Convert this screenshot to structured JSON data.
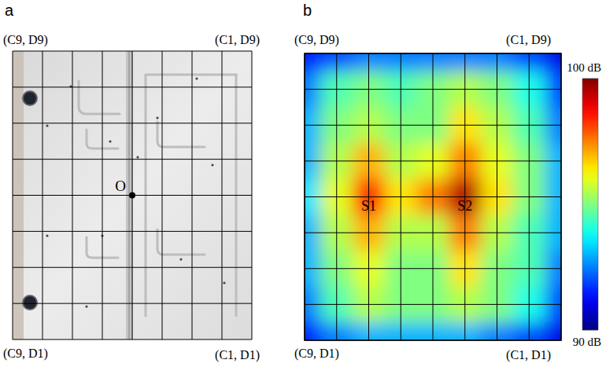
{
  "panel_a": {
    "panel_label": "a",
    "corner_labels": {
      "top_left": "(C9, D9)",
      "top_right": "(C1, D9)",
      "bottom_left": "(C9, D1)",
      "bottom_right": "(C1, D1)"
    },
    "origin": {
      "label": "O",
      "row": 4,
      "col": 4
    }
  },
  "chart_data": {
    "type": "heatmap",
    "panel_label": "b",
    "corner_labels": {
      "top_left": "(C9, D9)",
      "top_right": "(C1, D9)",
      "bottom_left": "(C9, D1)",
      "bottom_right": "(C1, D1)"
    },
    "cells": [
      [
        91.5,
        92,
        92.5,
        92.5,
        92.5,
        92.5,
        92.5,
        92,
        91
      ],
      [
        92.5,
        94.5,
        95,
        94.5,
        95,
        95.5,
        95,
        94,
        92
      ],
      [
        93,
        95,
        95.5,
        95,
        95,
        96.5,
        95.5,
        94.5,
        92.5
      ],
      [
        93,
        95.5,
        97,
        95.5,
        96,
        97.5,
        96,
        95,
        93
      ],
      [
        93.5,
        96,
        98.5,
        96.5,
        97.5,
        99.5,
        96.5,
        95,
        93
      ],
      [
        93,
        95.5,
        97,
        95.5,
        95.5,
        97.5,
        95.5,
        94.5,
        93
      ],
      [
        93,
        95,
        96,
        95,
        95,
        96.5,
        95,
        94.5,
        92.5
      ],
      [
        92.5,
        94.5,
        95.5,
        95,
        95,
        95.5,
        95,
        94,
        92
      ],
      [
        91.5,
        92.5,
        93,
        93,
        93,
        93,
        92.5,
        92,
        91
      ]
    ],
    "annotations": [
      {
        "text": "S1",
        "row": 4,
        "col": 2
      },
      {
        "text": "S2",
        "row": 4,
        "col": 5
      }
    ],
    "colorbar": {
      "range": [
        90,
        100
      ],
      "ticks": [
        {
          "value": 90,
          "label": "90 dB"
        },
        {
          "value": 100,
          "label": "100 dB"
        }
      ]
    },
    "grid": true,
    "tick_labels": false
  }
}
